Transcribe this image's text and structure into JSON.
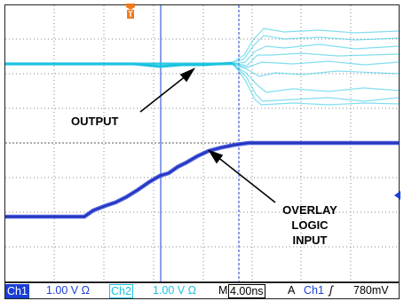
{
  "annotations": {
    "output": "OUTPUT",
    "overlay_line1": "OVERLAY",
    "overlay_line2": "LOGIC",
    "overlay_line3": "INPUT"
  },
  "trigger_marker": "T",
  "status_bar": {
    "ch1_label": "Ch1",
    "ch1_scale": "1.00 V Ω",
    "ch2_label": "Ch2",
    "ch2_scale": "1.00 V Ω",
    "timebase_label": "M",
    "timebase_value": "4.00ns",
    "trigger_mode": "A",
    "trigger_channel": "Ch1",
    "trigger_slope": "ʃ",
    "trigger_level": "780mV"
  },
  "colors": {
    "ch1": "#1a3fd6",
    "ch2": "#1ac2e0",
    "trigger_marker": "#f07a1a",
    "grid": "#888888"
  }
}
